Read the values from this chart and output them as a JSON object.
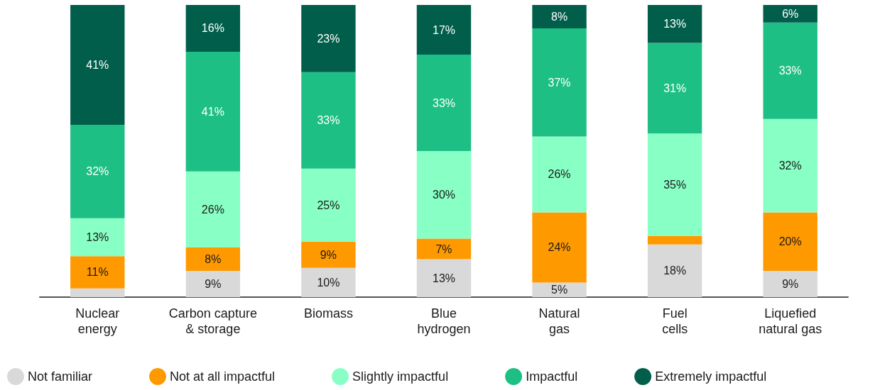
{
  "chart_data": {
    "type": "bar",
    "stacked": true,
    "categories": [
      "Nuclear\nenergy",
      "Carbon capture\n& storage",
      "Biomass",
      "Blue\nhydrogen",
      "Natural\ngas",
      "Fuel\ncells",
      "Liquefied\nnatural gas"
    ],
    "ylim": [
      0,
      100
    ],
    "tick_labels": "x",
    "grid": false,
    "legend": "bottom",
    "series": [
      {
        "name": "Not familiar",
        "color": "#d9d9d9",
        "values": [
          3,
          9,
          10,
          13,
          5,
          18,
          9
        ],
        "value_labels": [
          null,
          "9%",
          "10%",
          "13%",
          "5%",
          "18%",
          "9%"
        ]
      },
      {
        "name": "Not at all impactful",
        "color": "#ff9900",
        "values": [
          11,
          8,
          9,
          7,
          24,
          3,
          20
        ],
        "value_labels": [
          "11%",
          "8%",
          "9%",
          "7%",
          "24%",
          null,
          "20%"
        ]
      },
      {
        "name": "Slightly impactful",
        "color": "#88ffc4",
        "values": [
          13,
          26,
          25,
          30,
          26,
          35,
          32
        ],
        "value_labels": [
          "13%",
          "26%",
          "25%",
          "30%",
          "26%",
          "35%",
          "32%"
        ]
      },
      {
        "name": "Impactful",
        "color": "#1dbf85",
        "values": [
          32,
          41,
          33,
          33,
          37,
          31,
          33
        ],
        "value_labels": [
          "32%",
          "41%",
          "33%",
          "33%",
          "37%",
          "31%",
          "33%"
        ]
      },
      {
        "name": "Extremely impactful",
        "color": "#005e4a",
        "values": [
          41,
          16,
          23,
          17,
          8,
          13,
          6
        ],
        "value_labels": [
          "41%",
          "16%",
          "23%",
          "17%",
          "8%",
          "13%",
          "6%"
        ]
      }
    ]
  }
}
